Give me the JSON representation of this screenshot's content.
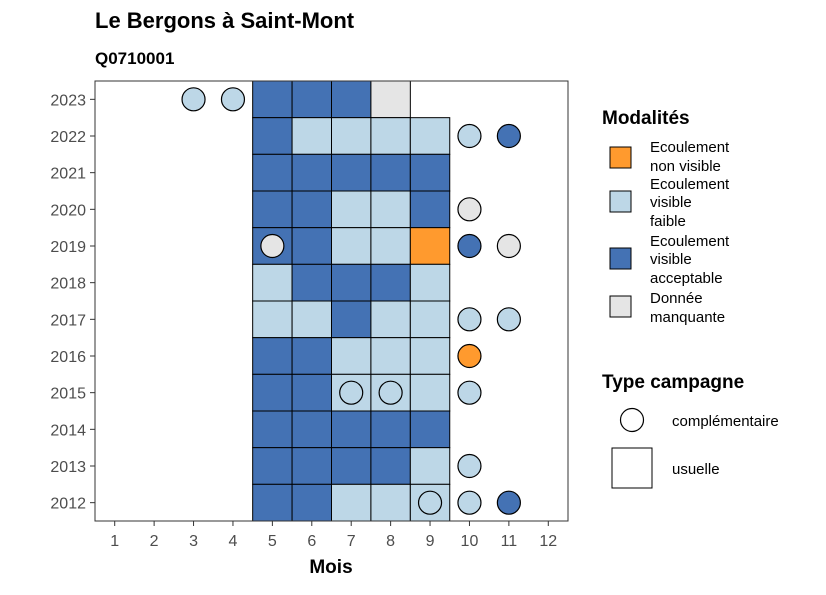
{
  "chart_data": {
    "type": "heatmap",
    "title": "Le Bergons à Saint-Mont",
    "subtitle": "Q0710001",
    "xlabel": "Mois",
    "ylabel": "",
    "x_ticks": [
      1,
      2,
      3,
      4,
      5,
      6,
      7,
      8,
      9,
      10,
      11,
      12
    ],
    "y_ticks": [
      2023,
      2022,
      2021,
      2020,
      2019,
      2018,
      2017,
      2016,
      2015,
      2014,
      2013,
      2012
    ],
    "xlim": [
      0.5,
      12.5
    ],
    "ylim": [
      2011.5,
      2023.5
    ],
    "grid": false,
    "legend_position": "right",
    "modalities": [
      {
        "key": "nv",
        "label": "Ecoulement non visible",
        "color": "#FF9A2E"
      },
      {
        "key": "vf",
        "label": "Ecoulement visible faible",
        "color": "#BDD7E7"
      },
      {
        "key": "va",
        "label": "Ecoulement visible acceptable",
        "color": "#4472B4"
      },
      {
        "key": "dm",
        "label": "Donnée manquante",
        "color": "#E5E5E5"
      }
    ],
    "legend_titles": {
      "modalites": "Modalités",
      "campagne": "Type campagne"
    },
    "campaign_types": [
      "complémentaire",
      "usuelle"
    ],
    "usuelle": [
      {
        "year": 2023,
        "month": 5,
        "m": "va"
      },
      {
        "year": 2023,
        "month": 6,
        "m": "va"
      },
      {
        "year": 2023,
        "month": 7,
        "m": "va"
      },
      {
        "year": 2023,
        "month": 8,
        "m": "dm"
      },
      {
        "year": 2022,
        "month": 5,
        "m": "va"
      },
      {
        "year": 2022,
        "month": 6,
        "m": "vf"
      },
      {
        "year": 2022,
        "month": 7,
        "m": "vf"
      },
      {
        "year": 2022,
        "month": 8,
        "m": "vf"
      },
      {
        "year": 2022,
        "month": 9,
        "m": "vf"
      },
      {
        "year": 2021,
        "month": 5,
        "m": "va"
      },
      {
        "year": 2021,
        "month": 6,
        "m": "va"
      },
      {
        "year": 2021,
        "month": 7,
        "m": "va"
      },
      {
        "year": 2021,
        "month": 8,
        "m": "va"
      },
      {
        "year": 2021,
        "month": 9,
        "m": "va"
      },
      {
        "year": 2020,
        "month": 5,
        "m": "va"
      },
      {
        "year": 2020,
        "month": 6,
        "m": "va"
      },
      {
        "year": 2020,
        "month": 7,
        "m": "vf"
      },
      {
        "year": 2020,
        "month": 8,
        "m": "vf"
      },
      {
        "year": 2020,
        "month": 9,
        "m": "va"
      },
      {
        "year": 2019,
        "month": 5,
        "m": "va"
      },
      {
        "year": 2019,
        "month": 6,
        "m": "va"
      },
      {
        "year": 2019,
        "month": 7,
        "m": "vf"
      },
      {
        "year": 2019,
        "month": 8,
        "m": "vf"
      },
      {
        "year": 2019,
        "month": 9,
        "m": "nv"
      },
      {
        "year": 2018,
        "month": 5,
        "m": "vf"
      },
      {
        "year": 2018,
        "month": 6,
        "m": "va"
      },
      {
        "year": 2018,
        "month": 7,
        "m": "va"
      },
      {
        "year": 2018,
        "month": 8,
        "m": "va"
      },
      {
        "year": 2018,
        "month": 9,
        "m": "vf"
      },
      {
        "year": 2017,
        "month": 5,
        "m": "vf"
      },
      {
        "year": 2017,
        "month": 6,
        "m": "vf"
      },
      {
        "year": 2017,
        "month": 7,
        "m": "va"
      },
      {
        "year": 2017,
        "month": 8,
        "m": "vf"
      },
      {
        "year": 2017,
        "month": 9,
        "m": "vf"
      },
      {
        "year": 2016,
        "month": 5,
        "m": "va"
      },
      {
        "year": 2016,
        "month": 6,
        "m": "va"
      },
      {
        "year": 2016,
        "month": 7,
        "m": "vf"
      },
      {
        "year": 2016,
        "month": 8,
        "m": "vf"
      },
      {
        "year": 2016,
        "month": 9,
        "m": "vf"
      },
      {
        "year": 2015,
        "month": 5,
        "m": "va"
      },
      {
        "year": 2015,
        "month": 6,
        "m": "va"
      },
      {
        "year": 2015,
        "month": 7,
        "m": "vf"
      },
      {
        "year": 2015,
        "month": 8,
        "m": "vf"
      },
      {
        "year": 2015,
        "month": 9,
        "m": "vf"
      },
      {
        "year": 2014,
        "month": 5,
        "m": "va"
      },
      {
        "year": 2014,
        "month": 6,
        "m": "va"
      },
      {
        "year": 2014,
        "month": 7,
        "m": "va"
      },
      {
        "year": 2014,
        "month": 8,
        "m": "va"
      },
      {
        "year": 2014,
        "month": 9,
        "m": "va"
      },
      {
        "year": 2013,
        "month": 5,
        "m": "va"
      },
      {
        "year": 2013,
        "month": 6,
        "m": "va"
      },
      {
        "year": 2013,
        "month": 7,
        "m": "va"
      },
      {
        "year": 2013,
        "month": 8,
        "m": "va"
      },
      {
        "year": 2013,
        "month": 9,
        "m": "vf"
      },
      {
        "year": 2012,
        "month": 5,
        "m": "va"
      },
      {
        "year": 2012,
        "month": 6,
        "m": "va"
      },
      {
        "year": 2012,
        "month": 7,
        "m": "vf"
      },
      {
        "year": 2012,
        "month": 8,
        "m": "vf"
      },
      {
        "year": 2012,
        "month": 9,
        "m": "vf"
      }
    ],
    "complementaire": [
      {
        "year": 2023,
        "month": 3,
        "m": "vf"
      },
      {
        "year": 2023,
        "month": 4,
        "m": "vf"
      },
      {
        "year": 2022,
        "month": 10,
        "m": "vf"
      },
      {
        "year": 2022,
        "month": 11,
        "m": "va"
      },
      {
        "year": 2020,
        "month": 10,
        "m": "dm"
      },
      {
        "year": 2019,
        "month": 5,
        "m": "dm"
      },
      {
        "year": 2019,
        "month": 10,
        "m": "va"
      },
      {
        "year": 2019,
        "month": 11,
        "m": "dm"
      },
      {
        "year": 2017,
        "month": 10,
        "m": "vf"
      },
      {
        "year": 2017,
        "month": 11,
        "m": "vf"
      },
      {
        "year": 2016,
        "month": 10,
        "m": "nv"
      },
      {
        "year": 2015,
        "month": 7,
        "m": "vf"
      },
      {
        "year": 2015,
        "month": 8,
        "m": "vf"
      },
      {
        "year": 2015,
        "month": 10,
        "m": "vf"
      },
      {
        "year": 2013,
        "month": 10,
        "m": "vf"
      },
      {
        "year": 2012,
        "month": 9,
        "m": "vf"
      },
      {
        "year": 2012,
        "month": 10,
        "m": "vf"
      },
      {
        "year": 2012,
        "month": 11,
        "m": "va"
      }
    ]
  }
}
